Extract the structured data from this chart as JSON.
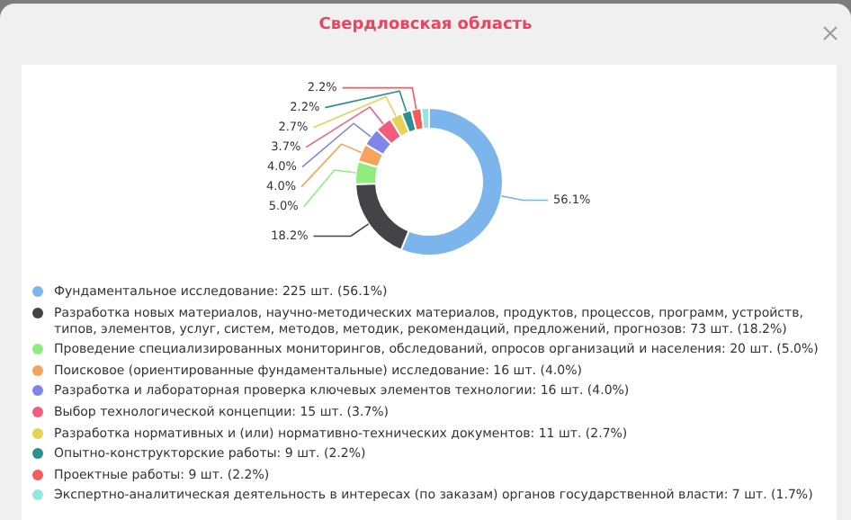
{
  "chart_data": {
    "type": "donut",
    "title": "Свердловская область",
    "categories": [
      "Фундаментальное исследование: 225 шт. (56.1%)",
      "Разработка новых материалов, научно-методических материалов, продуктов, процессов, программ, устройств, типов, элементов, услуг, систем, методов, методик, рекомендаций, предложений, прогнозов: 73 шт. (18.2%)",
      "Проведение специализированных мониторингов, обследований, опросов организаций и населения: 20 шт. (5.0%)",
      "Поисковое (ориентированные фундаментальные) исследование: 16 шт. (4.0%)",
      "Разработка и лабораторная проверка ключевых элементов технологии: 16 шт. (4.0%)",
      "Выбор технологической концепции: 15 шт. (3.7%)",
      "Разработка нормативных и (или) нормативно-технических документов: 11 шт. (2.7%)",
      "Опытно-конструкторские работы: 9 шт. (2.2%)",
      "Проектные работы: 9 шт. (2.2%)",
      "Экспертно-аналитическая деятельность в интересах (по заказам) органов государственной власти: 7 шт. (1.7%)"
    ],
    "values": [
      56.1,
      18.2,
      5.0,
      4.0,
      4.0,
      3.7,
      2.7,
      2.2,
      2.2,
      1.7
    ],
    "value_labels": [
      "56.1%",
      "18.2%",
      "5.0%",
      "4.0%",
      "4.0%",
      "3.7%",
      "2.7%",
      "2.2%",
      "2.2%",
      null
    ],
    "colors": [
      "#7cb5ec",
      "#434348",
      "#90ed7d",
      "#f7a35c",
      "#8085e9",
      "#f15c80",
      "#e4d354",
      "#2b908f",
      "#f45b5b",
      "#91e8e1"
    ],
    "legend": "bottom"
  }
}
